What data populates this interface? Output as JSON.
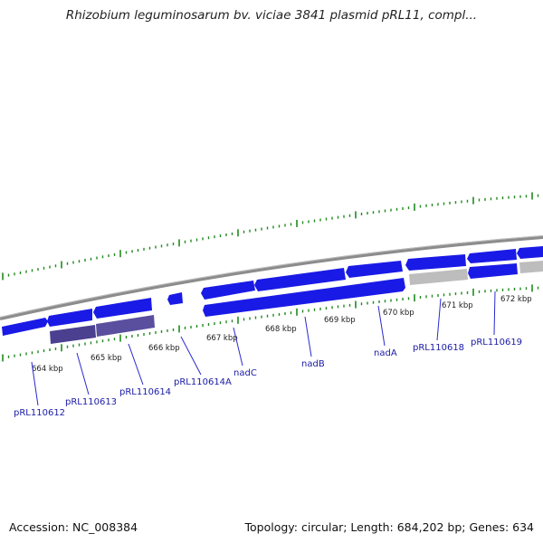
{
  "title": "Rhizobium leguminosarum bv. viciae 3841 plasmid pRL11, compl...",
  "footer": {
    "accession": "Accession: NC_008384",
    "summary": "Topology: circular; Length: 684,202 bp; Genes: 634"
  },
  "ruler": {
    "labels": [
      "664 kbp",
      "665 kbp",
      "666 kbp",
      "667 kbp",
      "668 kbp",
      "669 kbp",
      "670 kbp",
      "671 kbp",
      "672 kbp"
    ]
  },
  "genes": [
    {
      "name": "pRL110612"
    },
    {
      "name": "pRL110613"
    },
    {
      "name": "pRL110614"
    },
    {
      "name": "pRL110614A"
    },
    {
      "name": "nadC"
    },
    {
      "name": "nadB"
    },
    {
      "name": "nadA"
    },
    {
      "name": "pRL110618"
    },
    {
      "name": "pRL110619"
    }
  ],
  "colors": {
    "forward_cds": "#1a1ae6",
    "reverse_cds": "#1a1ae6",
    "rna_feature": "#4b3f8f",
    "gray_feature": "#bdbdbd",
    "backbone": "#8c8c8c",
    "ticks": "#1f8a1f",
    "gene_label": "#1a1aa6"
  }
}
